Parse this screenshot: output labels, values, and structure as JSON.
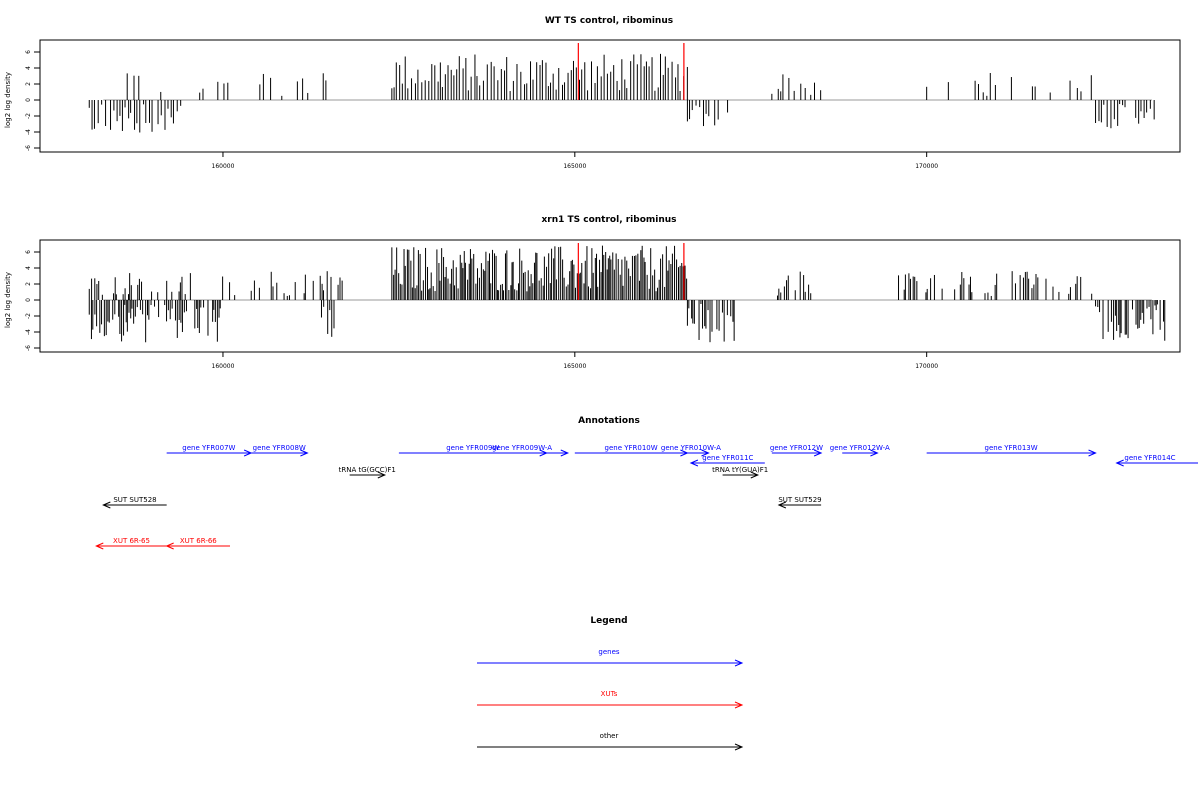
{
  "chart_data": [
    {
      "type": "bar",
      "title": "WT TS control, ribominus",
      "ylabel": "log2 log density",
      "ylim": [
        -6,
        7
      ],
      "xlim": [
        157500,
        173800
      ],
      "yticks": [
        6,
        4,
        2,
        0,
        -2,
        -4,
        -6
      ],
      "xticks": [
        160000,
        165000,
        170000
      ],
      "grid": false,
      "series": [
        {
          "x_ranges": [
            [
              158100,
              158800
            ],
            [
              159300,
              159900
            ],
            [
              160000,
              160300
            ],
            [
              160800,
              161500
            ],
            [
              162400,
              166600
            ],
            [
              167800,
              168600
            ],
            [
              170000,
              172400
            ]
          ],
          "pos_ranges": [
            [
              158500,
              161500
            ],
            [
              162400,
              166600
            ],
            [
              167800,
              168600
            ],
            [
              170000,
              172400
            ]
          ],
          "neg_ranges": [
            [
              158100,
              159400
            ],
            [
              166600,
              167200
            ],
            [
              172400,
              173300
            ]
          ],
          "values_note": "",
          "color": "#000000"
        }
      ],
      "markers": {
        "x": [
          165050,
          166550
        ],
        "color": "#ff0000"
      }
    },
    {
      "type": "bar",
      "title": "xrn1 TS control, ribominus",
      "ylabel": "log2 log density",
      "ylim": [
        -6,
        7
      ],
      "xlim": [
        157500,
        173800
      ],
      "yticks": [
        6,
        4,
        2,
        0,
        -2,
        -4,
        -6
      ],
      "xticks": [
        160000,
        165000,
        170000
      ],
      "grid": false,
      "series": [
        {
          "pos_ranges": [
            [
              158100,
              161800
            ],
            [
              162400,
              166600
            ],
            [
              167800,
              168400
            ],
            [
              169600,
              172400
            ]
          ],
          "neg_ranges": [
            [
              158100,
              159500
            ],
            [
              159600,
              160000
            ],
            [
              161400,
              161600
            ],
            [
              166600,
              167300
            ],
            [
              172400,
              173400
            ]
          ],
          "color": "#000000"
        }
      ],
      "markers": {
        "x": [
          165050,
          166550
        ],
        "color": "#ff0000"
      }
    }
  ],
  "annotations": {
    "title": "Annotations",
    "features": [
      {
        "label": "gene YFR007W",
        "start": 159200,
        "end": 160400,
        "strand": "+",
        "row": 0,
        "color": "#0000ff"
      },
      {
        "label": "gene YFR008W",
        "start": 160400,
        "end": 161200,
        "strand": "+",
        "row": 0,
        "color": "#0000ff"
      },
      {
        "label": "gene YFR009W",
        "start": 162500,
        "end": 164600,
        "strand": "+",
        "row": 0,
        "color": "#0000ff"
      },
      {
        "label": "gene YFR009W-A",
        "start": 163600,
        "end": 164900,
        "strand": "+",
        "row": 0,
        "color": "#0000ff"
      },
      {
        "label": "gene YFR010W",
        "start": 165000,
        "end": 166600,
        "strand": "+",
        "row": 0,
        "color": "#0000ff"
      },
      {
        "label": "gene YFR010W-A",
        "start": 166400,
        "end": 166900,
        "strand": "+",
        "row": 0,
        "color": "#0000ff"
      },
      {
        "label": "gene YFR012W",
        "start": 167800,
        "end": 168500,
        "strand": "+",
        "row": 0,
        "color": "#0000ff"
      },
      {
        "label": "gene YFR012W-A",
        "start": 168800,
        "end": 169300,
        "strand": "+",
        "row": 0,
        "color": "#0000ff"
      },
      {
        "label": "gene YFR013W",
        "start": 170000,
        "end": 172400,
        "strand": "+",
        "row": 0,
        "color": "#0000ff"
      },
      {
        "label": "gene YFR011C",
        "start": 166650,
        "end": 167700,
        "strand": "-",
        "row": 1,
        "color": "#0000ff"
      },
      {
        "label": "gene YFR014C",
        "start": 172700,
        "end": 174400,
        "strand": "-",
        "row": 1,
        "color": "#0000ff"
      },
      {
        "label": "tRNA tG(GCC)F1",
        "start": 161800,
        "end": 162300,
        "strand": "+",
        "row": 2,
        "color": "#000000"
      },
      {
        "label": "tRNA tY(GUA)F1",
        "start": 167100,
        "end": 167600,
        "strand": "+",
        "row": 2,
        "color": "#000000"
      },
      {
        "label": "SUT SUT528",
        "start": 158300,
        "end": 159200,
        "strand": "-",
        "row": 3,
        "color": "#000000"
      },
      {
        "label": "SUT SUT529",
        "start": 167900,
        "end": 168500,
        "strand": "-",
        "row": 3,
        "color": "#000000"
      },
      {
        "label": "XUT 6R-65",
        "start": 158200,
        "end": 159200,
        "strand": "-",
        "row": 4,
        "color": "#ff0000"
      },
      {
        "label": "XUT 6R-66",
        "start": 159200,
        "end": 160100,
        "strand": "-",
        "row": 4,
        "color": "#ff0000"
      }
    ]
  },
  "legend": {
    "title": "Legend",
    "items": [
      {
        "label": "genes",
        "color": "#0000ff"
      },
      {
        "label": "XUTs",
        "color": "#ff0000"
      },
      {
        "label": "other",
        "color": "#000000"
      }
    ]
  }
}
